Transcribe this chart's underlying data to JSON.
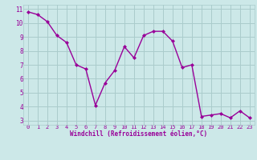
{
  "x": [
    0,
    1,
    2,
    3,
    4,
    5,
    6,
    7,
    8,
    9,
    10,
    11,
    12,
    13,
    14,
    15,
    16,
    17,
    18,
    19,
    20,
    21,
    22,
    23
  ],
  "y": [
    10.8,
    10.6,
    10.1,
    9.1,
    8.6,
    7.0,
    6.7,
    4.1,
    5.7,
    6.6,
    8.3,
    7.5,
    9.1,
    9.4,
    9.4,
    8.7,
    6.8,
    7.0,
    3.3,
    3.4,
    3.5,
    3.2,
    3.7,
    3.2
  ],
  "line_color": "#990099",
  "marker": "D",
  "marker_size": 2.0,
  "bg_color": "#cce8e8",
  "grid_color": "#aacccc",
  "xlabel": "Windchill (Refroidissement éolien,°C)",
  "xlabel_color": "#990099",
  "tick_color": "#990099",
  "ylim": [
    2.7,
    11.3
  ],
  "xlim": [
    -0.5,
    23.5
  ],
  "yticks": [
    3,
    4,
    5,
    6,
    7,
    8,
    9,
    10,
    11
  ],
  "xticks": [
    0,
    1,
    2,
    3,
    4,
    5,
    6,
    7,
    8,
    9,
    10,
    11,
    12,
    13,
    14,
    15,
    16,
    17,
    18,
    19,
    20,
    21,
    22,
    23
  ],
  "line_width": 1.0
}
